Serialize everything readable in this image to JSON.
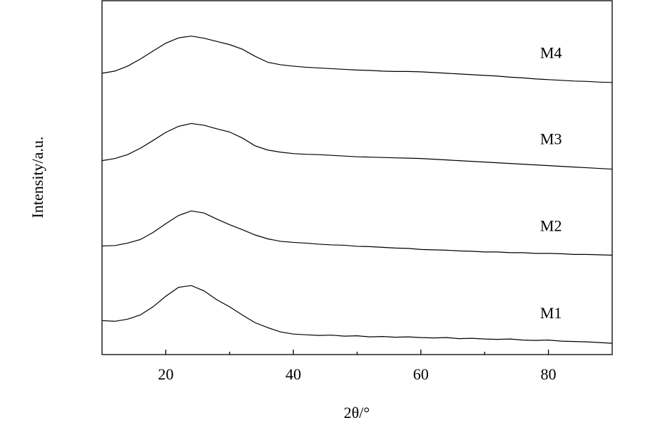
{
  "chart_data": {
    "type": "line",
    "x_label": "2θ/°",
    "y_label": "Intensity/a.u.",
    "x": [
      10,
      12,
      14,
      16,
      18,
      20,
      22,
      24,
      26,
      28,
      30,
      32,
      34,
      36,
      38,
      40,
      42,
      44,
      46,
      48,
      50,
      52,
      54,
      56,
      58,
      60,
      62,
      64,
      66,
      68,
      70,
      72,
      74,
      76,
      78,
      80,
      82,
      84,
      86,
      88,
      90
    ],
    "series": [
      {
        "name": "M1",
        "color": "#000000",
        "values": [
          9.6,
          9.4,
          10.0,
          11.2,
          13.5,
          16.5,
          19.0,
          19.5,
          18.0,
          15.5,
          13.5,
          11.2,
          9.0,
          7.6,
          6.4,
          5.8,
          5.6,
          5.4,
          5.5,
          5.2,
          5.3,
          5.0,
          5.1,
          4.9,
          5.0,
          4.8,
          4.7,
          4.8,
          4.5,
          4.6,
          4.4,
          4.3,
          4.4,
          4.1,
          4.0,
          4.1,
          3.8,
          3.7,
          3.6,
          3.4,
          3.2
        ]
      },
      {
        "name": "M2",
        "color": "#000000",
        "values": [
          30.7,
          30.8,
          31.5,
          32.5,
          34.5,
          37.0,
          39.3,
          40.6,
          40.0,
          38.3,
          36.7,
          35.3,
          33.8,
          32.7,
          32.0,
          31.7,
          31.5,
          31.2,
          31.0,
          30.9,
          30.6,
          30.5,
          30.3,
          30.1,
          30.0,
          29.7,
          29.6,
          29.5,
          29.3,
          29.2,
          29.0,
          29.0,
          28.8,
          28.8,
          28.6,
          28.6,
          28.5,
          28.3,
          28.3,
          28.2,
          28.1
        ]
      },
      {
        "name": "M3",
        "color": "#000000",
        "values": [
          54.8,
          55.4,
          56.5,
          58.3,
          60.5,
          62.8,
          64.5,
          65.3,
          64.8,
          63.8,
          62.9,
          61.2,
          59.0,
          57.8,
          57.2,
          56.8,
          56.6,
          56.5,
          56.3,
          56.1,
          55.9,
          55.8,
          55.7,
          55.6,
          55.5,
          55.4,
          55.2,
          55.0,
          54.8,
          54.6,
          54.4,
          54.2,
          54.0,
          53.8,
          53.6,
          53.4,
          53.2,
          53.0,
          52.8,
          52.6,
          52.4
        ]
      },
      {
        "name": "M4",
        "color": "#000000",
        "values": [
          79.5,
          80.1,
          81.5,
          83.5,
          85.8,
          88.0,
          89.5,
          90.0,
          89.4,
          88.5,
          87.6,
          86.3,
          84.3,
          82.6,
          81.9,
          81.5,
          81.2,
          81.0,
          80.8,
          80.6,
          80.4,
          80.3,
          80.1,
          80.0,
          80.0,
          79.9,
          79.7,
          79.5,
          79.3,
          79.1,
          78.9,
          78.7,
          78.4,
          78.2,
          77.9,
          77.7,
          77.5,
          77.3,
          77.2,
          77.0,
          76.9
        ]
      }
    ],
    "xlim": [
      10,
      90
    ],
    "ylim": [
      0,
      100
    ],
    "xticks": [
      20,
      40,
      60,
      80
    ],
    "xminorticks": [
      30,
      50,
      70
    ]
  }
}
